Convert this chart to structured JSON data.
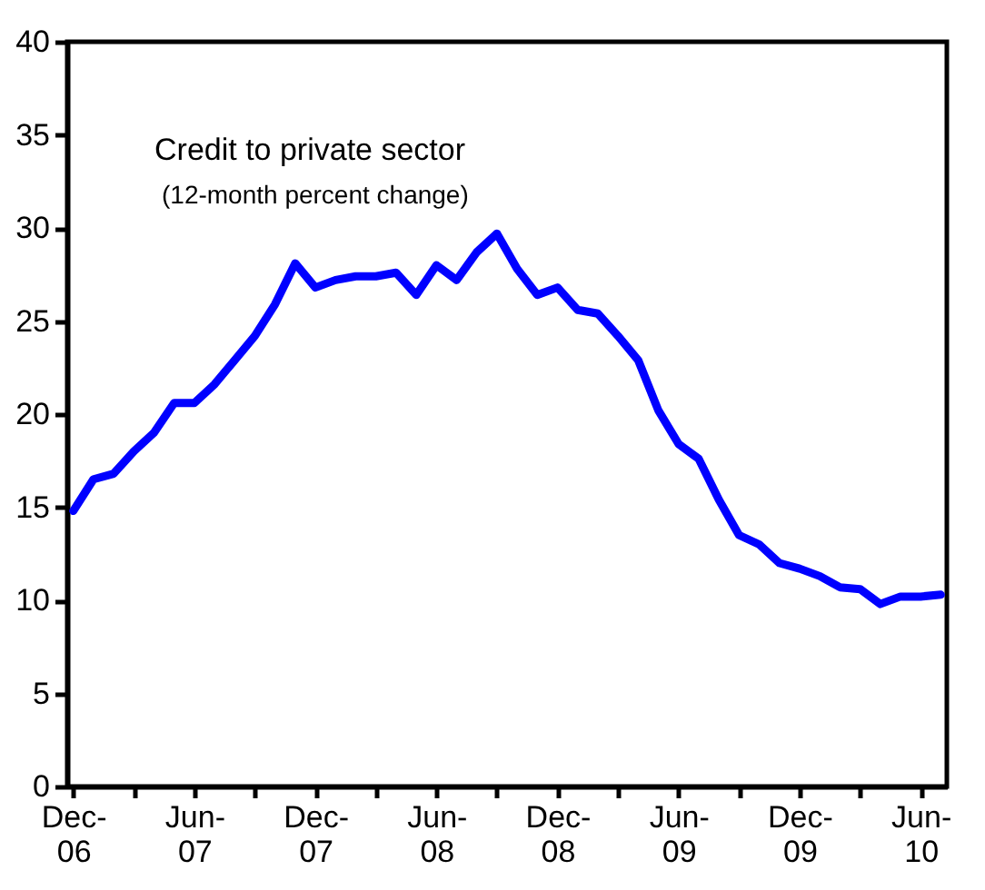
{
  "chart_data": {
    "type": "line",
    "annotations": [
      "Credit to private sector",
      "(12-month percent change)"
    ],
    "categories": [
      "Dec-06",
      null,
      null,
      null,
      null,
      null,
      "Jun-07",
      null,
      null,
      null,
      null,
      null,
      "Dec-07",
      null,
      null,
      null,
      null,
      null,
      "Jun-08",
      null,
      null,
      null,
      null,
      null,
      "Dec-08",
      null,
      null,
      null,
      null,
      null,
      "Jun-09",
      null,
      null,
      null,
      null,
      null,
      "Dec-09",
      null,
      null,
      null,
      null,
      null,
      "Jun-10",
      null
    ],
    "values": [
      14.8,
      16.5,
      16.8,
      18.0,
      19.0,
      20.6,
      20.6,
      21.6,
      22.9,
      24.2,
      25.9,
      28.1,
      26.8,
      27.2,
      27.4,
      27.4,
      27.6,
      26.4,
      28.0,
      27.2,
      28.7,
      29.7,
      27.8,
      26.4,
      26.8,
      25.6,
      25.4,
      24.2,
      22.9,
      20.2,
      18.4,
      17.6,
      15.4,
      13.5,
      13.0,
      12.0,
      11.7,
      11.3,
      10.7,
      10.6,
      9.8,
      10.2,
      10.2,
      10.3
    ],
    "color": "#0000ff",
    "ylim": [
      0,
      40
    ],
    "yticks": [
      0,
      5,
      10,
      15,
      20,
      25,
      30,
      35,
      40
    ]
  }
}
